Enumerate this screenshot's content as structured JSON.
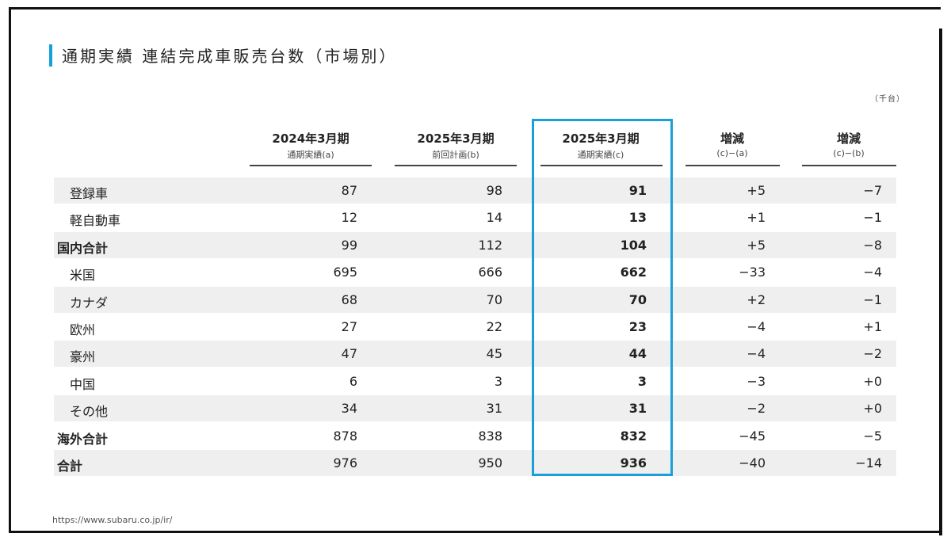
{
  "title": "通期実績 連結完成車販売台数（市場別）",
  "unit": "（千台）",
  "columns": [
    {
      "main": "2024年3月期",
      "sub": "通期実績(a)"
    },
    {
      "main": "2025年3月期",
      "sub": "前回計画(b)"
    },
    {
      "main": "2025年3月期",
      "sub": "通期実績(c)"
    },
    {
      "main": "増減",
      "sub": "(c)−(a)"
    },
    {
      "main": "増減",
      "sub": "(c)−(b)"
    }
  ],
  "rows": [
    {
      "label": "登録車",
      "type": "indent",
      "values": [
        "87",
        "98",
        "91",
        "+5",
        "−7"
      ]
    },
    {
      "label": "軽自動車",
      "type": "indent",
      "values": [
        "12",
        "14",
        "13",
        "+1",
        "−1"
      ]
    },
    {
      "label": "国内合計",
      "type": "total",
      "values": [
        "99",
        "112",
        "104",
        "+5",
        "−8"
      ]
    },
    {
      "label": "米国",
      "type": "indent",
      "values": [
        "695",
        "666",
        "662",
        "−33",
        "−4"
      ]
    },
    {
      "label": "カナダ",
      "type": "indent",
      "values": [
        "68",
        "70",
        "70",
        "+2",
        "−1"
      ]
    },
    {
      "label": "欧州",
      "type": "indent",
      "values": [
        "27",
        "22",
        "23",
        "−4",
        "+1"
      ]
    },
    {
      "label": "豪州",
      "type": "indent",
      "values": [
        "47",
        "45",
        "44",
        "−4",
        "−2"
      ]
    },
    {
      "label": "中国",
      "type": "indent",
      "values": [
        "6",
        "3",
        "3",
        "−3",
        "+0"
      ]
    },
    {
      "label": "その他",
      "type": "indent",
      "values": [
        "34",
        "31",
        "31",
        "−2",
        "+0"
      ]
    },
    {
      "label": "海外合計",
      "type": "total",
      "values": [
        "878",
        "838",
        "832",
        "−45",
        "−5"
      ]
    },
    {
      "label": "合計",
      "type": "total",
      "values": [
        "976",
        "950",
        "936",
        "−40",
        "−14"
      ]
    }
  ],
  "footer": "https://www.subaru.co.jp/ir/",
  "colors": {
    "accent": "#1aa0d8",
    "row_bg": "#efefef"
  }
}
